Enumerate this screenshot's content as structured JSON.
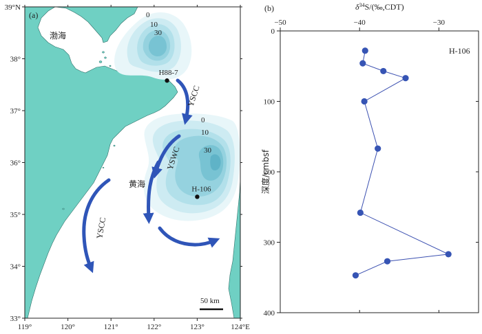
{
  "colors": {
    "land": "#6fd0c3",
    "sea": "#ffffff",
    "contour": [
      "#e8f6f9",
      "#cdebf2",
      "#b2e0ea",
      "#95d2df",
      "#78c3d3",
      "#5fb3c7"
    ],
    "current": "#2f55b8",
    "series": "#3654b4",
    "line": "#3a4fb0"
  },
  "map": {
    "panel_label": "(a)",
    "lon_ticks": [
      "119°",
      "120°",
      "121°",
      "122°",
      "123°",
      "124°E"
    ],
    "lat_ticks": [
      "39°N",
      "38°",
      "37°",
      "36°",
      "35°",
      "34°",
      "33°"
    ],
    "sea_labels": {
      "bohai": "渤海",
      "yellow_sea": "黄海"
    },
    "stations": [
      {
        "name": "H88-7",
        "lon": 122.3,
        "lat": 37.58
      },
      {
        "name": "H-106",
        "lon": 123.0,
        "lat": 35.34
      }
    ],
    "contour_labels": {
      "north": [
        "0",
        "10",
        "30"
      ],
      "south": [
        "0",
        "10",
        "30"
      ]
    },
    "currents": [
      {
        "name": "YSCC",
        "path": "north"
      },
      {
        "name": "YSWC",
        "path": "central"
      },
      {
        "name": "YSCC",
        "path": "coastal"
      }
    ],
    "scale_bar": "50 km"
  },
  "chart_data": {
    "type": "line",
    "panel_label": "(b)",
    "series_label": "H-106",
    "xlabel": "δ34S/(‰,CDT)",
    "ylabel": "深度/cmbsf",
    "xlim": [
      -50,
      -25
    ],
    "ylim": [
      0,
      400
    ],
    "x_ticks": [
      -50,
      -40,
      -30
    ],
    "y_ticks": [
      0,
      100,
      200,
      300,
      400
    ],
    "points": [
      {
        "x": -39.3,
        "y": 28
      },
      {
        "x": -39.6,
        "y": 46
      },
      {
        "x": -37.0,
        "y": 57
      },
      {
        "x": -34.2,
        "y": 67
      },
      {
        "x": -39.4,
        "y": 100
      },
      {
        "x": -37.7,
        "y": 167
      },
      {
        "x": -39.9,
        "y": 258
      },
      {
        "x": -28.8,
        "y": 317
      },
      {
        "x": -36.5,
        "y": 327
      },
      {
        "x": -40.5,
        "y": 347
      }
    ]
  }
}
